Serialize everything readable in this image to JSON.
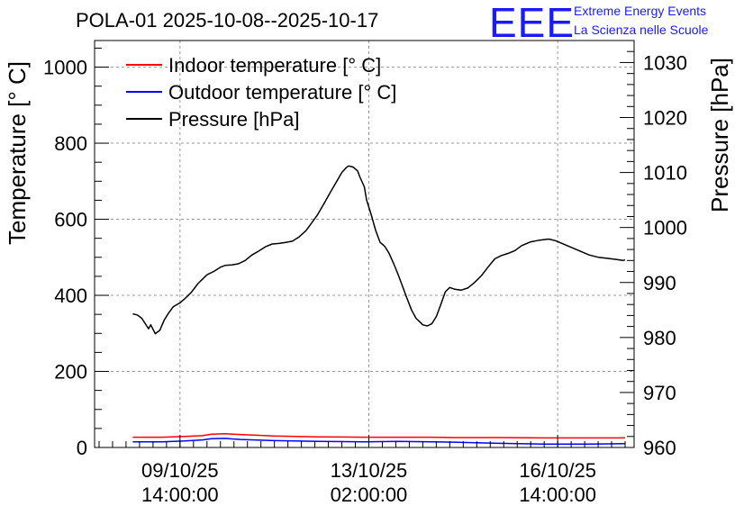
{
  "header": {
    "title": "POLA-01 2025-10-08--2025-10-17",
    "brand_logo": "EEE",
    "brand_line1": "Extreme Energy Events",
    "brand_line2": "La Scienza nelle Scuole"
  },
  "chart_data": {
    "type": "line",
    "title": "POLA-01 2025-10-08--2025-10-17",
    "xlabel": "",
    "ylabel": "Temperature [° C]",
    "y2label": "Pressure [hPa]",
    "x_unit": "hours since 2025-10-08 00:00",
    "xlim": [
      0,
      240
    ],
    "ylim": [
      0,
      1070
    ],
    "y2lim": [
      960,
      1034
    ],
    "grid": true,
    "legend_position": "top-left",
    "x_ticks": [
      {
        "value": 38,
        "line1": "09/10/25",
        "line2": "14:00:00"
      },
      {
        "value": 122,
        "line1": "13/10/25",
        "line2": "02:00:00"
      },
      {
        "value": 206,
        "line1": "16/10/25",
        "line2": "14:00:00"
      }
    ],
    "y_ticks": [
      "0",
      "200",
      "400",
      "600",
      "800",
      "1000"
    ],
    "y2_ticks": [
      "960",
      "970",
      "980",
      "990",
      "1000",
      "1010",
      "1020",
      "1030"
    ],
    "series": [
      {
        "name": "Indoor temperature [° C]",
        "axis": "left",
        "color": "#ff0000",
        "x": [
          17,
          30,
          40,
          48,
          52,
          58,
          65,
          80,
          100,
          120,
          135,
          150,
          160,
          180,
          200,
          220,
          236
        ],
        "y": [
          27,
          27,
          29,
          31,
          35,
          36,
          34,
          30,
          28,
          27,
          27,
          27,
          26,
          26,
          25,
          25,
          25
        ]
      },
      {
        "name": "Outdoor temperature [° C]",
        "axis": "left",
        "color": "#0000ff",
        "x": [
          17,
          30,
          40,
          48,
          52,
          58,
          65,
          80,
          100,
          120,
          135,
          150,
          160,
          180,
          200,
          220,
          236
        ],
        "y": [
          15,
          15,
          17,
          20,
          23,
          24,
          21,
          18,
          16,
          15,
          16,
          15,
          14,
          11,
          9,
          9,
          10
        ]
      },
      {
        "name": "Pressure [hPa]",
        "axis": "right",
        "color": "#000000",
        "x": [
          17,
          19,
          21,
          24,
          25,
          27,
          29,
          31,
          33,
          35,
          38,
          40,
          43,
          46,
          50,
          53,
          56,
          58,
          61,
          64,
          67,
          70,
          73,
          76,
          79,
          82,
          85,
          88,
          91,
          94,
          96,
          99,
          102,
          105,
          108,
          110,
          112,
          113,
          115,
          117,
          118,
          120,
          121,
          123,
          125,
          127,
          129,
          131,
          133,
          135,
          137,
          139,
          141,
          143,
          145,
          146,
          148,
          150,
          152,
          154,
          156,
          158,
          160,
          163,
          166,
          169,
          172,
          175,
          178,
          181,
          184,
          187,
          190,
          194,
          198,
          202,
          205,
          208,
          212,
          216,
          220,
          224,
          228,
          232,
          235,
          236
        ],
        "y": [
          984.3,
          984.1,
          983.5,
          981.6,
          982.3,
          980.7,
          981.3,
          983.2,
          984.5,
          985.6,
          986.3,
          987.0,
          988.2,
          989.8,
          991.4,
          992.0,
          992.8,
          993.1,
          993.2,
          993.4,
          994.0,
          995.0,
          995.7,
          996.5,
          997.0,
          997.1,
          997.3,
          997.5,
          998.3,
          999.4,
          1000.5,
          1002.2,
          1004.3,
          1006.5,
          1008.6,
          1010.0,
          1010.9,
          1011.2,
          1011.0,
          1010.3,
          1009.2,
          1007.4,
          1005.0,
          1002.4,
          999.5,
          997.3,
          996.6,
          995.3,
          993.5,
          991.5,
          989.3,
          987.1,
          985.0,
          983.5,
          982.7,
          982.3,
          982.1,
          982.5,
          983.8,
          986.0,
          988.3,
          989.1,
          988.8,
          988.6,
          989.0,
          990.0,
          991.2,
          992.8,
          994.3,
          994.9,
          995.3,
          995.8,
          996.7,
          997.4,
          997.7,
          997.9,
          997.6,
          997.1,
          996.4,
          995.7,
          995.0,
          994.6,
          994.4,
          994.2,
          994.0,
          994.1
        ]
      }
    ]
  }
}
